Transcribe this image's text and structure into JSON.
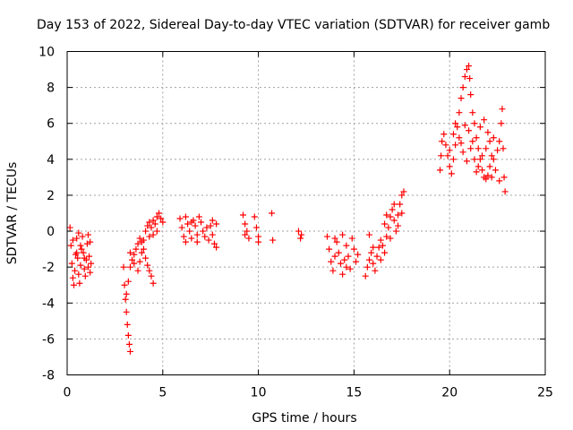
{
  "chart_data": {
    "type": "scatter",
    "title": "Day 153 of 2022, Sidereal Day-to-day VTEC variation (SDTVAR) for receiver gamb",
    "xlabel": "GPS time / hours",
    "ylabel": "SDTVAR / TECUs",
    "xlim": [
      0,
      25
    ],
    "ylim": [
      -8,
      10
    ],
    "xticks": [
      0,
      5,
      10,
      15,
      20,
      25
    ],
    "yticks": [
      -8,
      -6,
      -4,
      -2,
      0,
      2,
      4,
      6,
      8,
      10
    ],
    "grid": true,
    "marker": "+",
    "series": [
      {
        "name": "SDTVAR",
        "color": "#ff0000",
        "points": [
          [
            0.15,
            0.2
          ],
          [
            0.2,
            -0.8
          ],
          [
            0.25,
            -1.8
          ],
          [
            0.3,
            -2.6
          ],
          [
            0.35,
            -3.0
          ],
          [
            0.4,
            -2.2
          ],
          [
            0.45,
            -1.3
          ],
          [
            0.5,
            -0.4
          ],
          [
            0.55,
            -1.5
          ],
          [
            0.6,
            -2.4
          ],
          [
            0.65,
            -2.9
          ],
          [
            0.7,
            -1.9
          ],
          [
            0.75,
            -1.0
          ],
          [
            0.8,
            -0.3
          ],
          [
            0.85,
            -1.2
          ],
          [
            0.9,
            -2.1
          ],
          [
            0.95,
            -2.5
          ],
          [
            1.0,
            -1.6
          ],
          [
            1.05,
            -0.7
          ],
          [
            1.1,
            -0.2
          ],
          [
            1.15,
            -1.4
          ],
          [
            1.2,
            -2.3
          ],
          [
            1.25,
            -1.8
          ],
          [
            0.5,
            -1.2
          ],
          [
            0.7,
            -0.8
          ],
          [
            0.9,
            -1.5
          ],
          [
            1.1,
            -2.0
          ],
          [
            0.3,
            -0.5
          ],
          [
            0.6,
            -0.1
          ],
          [
            1.2,
            -0.6
          ],
          [
            2.95,
            -2.0
          ],
          [
            3.0,
            -3.0
          ],
          [
            3.05,
            -3.8
          ],
          [
            3.1,
            -4.5
          ],
          [
            3.15,
            -5.2
          ],
          [
            3.2,
            -5.8
          ],
          [
            3.25,
            -6.3
          ],
          [
            3.3,
            -6.7
          ],
          [
            3.1,
            -3.5
          ],
          [
            3.2,
            -2.8
          ],
          [
            3.3,
            -2.0
          ],
          [
            3.4,
            -1.6
          ],
          [
            3.5,
            -1.3
          ],
          [
            3.6,
            -1.0
          ],
          [
            3.7,
            -0.7
          ],
          [
            3.8,
            -0.4
          ],
          [
            3.9,
            -0.6
          ],
          [
            4.0,
            -1.0
          ],
          [
            4.1,
            -1.5
          ],
          [
            4.2,
            -1.9
          ],
          [
            4.3,
            -2.2
          ],
          [
            4.4,
            -2.5
          ],
          [
            4.5,
            -2.9
          ],
          [
            3.7,
            -2.2
          ],
          [
            3.8,
            -1.7
          ],
          [
            3.9,
            -1.2
          ],
          [
            4.0,
            -0.5
          ],
          [
            4.1,
            0.0
          ],
          [
            4.2,
            0.3
          ],
          [
            4.3,
            0.5
          ],
          [
            4.4,
            0.2
          ],
          [
            4.5,
            -0.2
          ],
          [
            4.6,
            0.4
          ],
          [
            4.7,
            0.8
          ],
          [
            4.8,
            1.0
          ],
          [
            4.9,
            0.7
          ],
          [
            5.0,
            0.5
          ],
          [
            4.3,
            -0.3
          ],
          [
            4.5,
            0.6
          ],
          [
            4.7,
            0.0
          ],
          [
            3.5,
            -1.8
          ],
          [
            3.3,
            -1.2
          ],
          [
            5.9,
            0.7
          ],
          [
            6.0,
            0.2
          ],
          [
            6.1,
            -0.3
          ],
          [
            6.2,
            -0.6
          ],
          [
            6.3,
            0.4
          ],
          [
            6.4,
            0.0
          ],
          [
            6.5,
            -0.4
          ],
          [
            6.6,
            0.6
          ],
          [
            6.7,
            0.3
          ],
          [
            6.8,
            -0.2
          ],
          [
            6.9,
            0.8
          ],
          [
            7.0,
            0.5
          ],
          [
            7.1,
            0.0
          ],
          [
            7.2,
            -0.3
          ],
          [
            7.3,
            0.2
          ],
          [
            7.4,
            -0.5
          ],
          [
            7.5,
            0.3
          ],
          [
            7.6,
            -0.2
          ],
          [
            7.7,
            -0.7
          ],
          [
            7.8,
            -0.9
          ],
          [
            7.6,
            0.6
          ],
          [
            7.8,
            0.4
          ],
          [
            6.2,
            0.8
          ],
          [
            6.5,
            0.5
          ],
          [
            6.8,
            -0.6
          ],
          [
            9.2,
            0.9
          ],
          [
            9.3,
            0.4
          ],
          [
            9.4,
            0.0
          ],
          [
            9.5,
            -0.4
          ],
          [
            9.3,
            -0.2
          ],
          [
            9.8,
            0.8
          ],
          [
            9.9,
            0.2
          ],
          [
            10.0,
            -0.3
          ],
          [
            10.0,
            -0.6
          ],
          [
            10.7,
            1.0
          ],
          [
            10.75,
            -0.5
          ],
          [
            12.1,
            0.0
          ],
          [
            12.2,
            -0.4
          ],
          [
            12.25,
            -0.2
          ],
          [
            13.6,
            -0.3
          ],
          [
            13.7,
            -1.0
          ],
          [
            13.8,
            -1.7
          ],
          [
            13.9,
            -2.2
          ],
          [
            14.0,
            -1.4
          ],
          [
            14.1,
            -0.6
          ],
          [
            14.2,
            -1.2
          ],
          [
            14.3,
            -1.8
          ],
          [
            14.4,
            -2.4
          ],
          [
            14.5,
            -1.6
          ],
          [
            14.6,
            -0.8
          ],
          [
            14.7,
            -1.4
          ],
          [
            14.8,
            -2.1
          ],
          [
            14.4,
            -0.2
          ],
          [
            14.9,
            -0.4
          ],
          [
            15.0,
            -1.0
          ],
          [
            15.1,
            -1.7
          ],
          [
            15.2,
            -1.3
          ],
          [
            14.0,
            -0.4
          ],
          [
            14.6,
            -2.0
          ],
          [
            15.6,
            -2.5
          ],
          [
            15.7,
            -2.0
          ],
          [
            15.8,
            -1.6
          ],
          [
            15.9,
            -1.2
          ],
          [
            16.0,
            -1.8
          ],
          [
            16.1,
            -2.2
          ],
          [
            16.2,
            -1.4
          ],
          [
            16.3,
            -0.9
          ],
          [
            16.4,
            -0.5
          ],
          [
            16.5,
            -0.8
          ],
          [
            16.6,
            -1.2
          ],
          [
            16.7,
            -0.3
          ],
          [
            16.8,
            0.2
          ],
          [
            16.9,
            0.8
          ],
          [
            17.0,
            1.2
          ],
          [
            17.1,
            0.6
          ],
          [
            17.2,
            0.0
          ],
          [
            17.3,
            0.9
          ],
          [
            17.4,
            1.5
          ],
          [
            17.5,
            2.0
          ],
          [
            17.6,
            2.2
          ],
          [
            17.5,
            1.0
          ],
          [
            17.3,
            0.3
          ],
          [
            16.6,
            0.4
          ],
          [
            16.0,
            -0.9
          ],
          [
            15.8,
            -0.2
          ],
          [
            16.9,
            -0.4
          ],
          [
            16.4,
            -1.6
          ],
          [
            17.1,
            1.5
          ],
          [
            16.7,
            0.9
          ],
          [
            19.5,
            3.4
          ],
          [
            19.55,
            4.2
          ],
          [
            19.6,
            5.0
          ],
          [
            19.7,
            5.4
          ],
          [
            19.8,
            4.8
          ],
          [
            19.9,
            4.2
          ],
          [
            20.0,
            3.6
          ],
          [
            20.1,
            3.2
          ],
          [
            20.2,
            4.0
          ],
          [
            20.3,
            4.8
          ],
          [
            20.4,
            5.8
          ],
          [
            20.5,
            6.6
          ],
          [
            20.6,
            7.4
          ],
          [
            20.7,
            8.0
          ],
          [
            20.8,
            8.6
          ],
          [
            20.9,
            9.0
          ],
          [
            21.0,
            9.2
          ],
          [
            21.05,
            8.5
          ],
          [
            21.1,
            7.6
          ],
          [
            21.2,
            6.6
          ],
          [
            21.3,
            6.0
          ],
          [
            21.4,
            5.2
          ],
          [
            21.5,
            4.6
          ],
          [
            21.6,
            4.0
          ],
          [
            21.7,
            3.4
          ],
          [
            21.8,
            3.0
          ],
          [
            21.9,
            2.9
          ],
          [
            22.0,
            3.1
          ],
          [
            22.1,
            3.6
          ],
          [
            22.2,
            4.2
          ],
          [
            22.3,
            4.0
          ],
          [
            22.4,
            3.4
          ],
          [
            22.5,
            4.5
          ],
          [
            22.6,
            5.0
          ],
          [
            22.7,
            6.0
          ],
          [
            22.75,
            6.8
          ],
          [
            22.8,
            4.6
          ],
          [
            22.85,
            3.0
          ],
          [
            22.9,
            2.2
          ],
          [
            20.3,
            6.0
          ],
          [
            20.5,
            5.2
          ],
          [
            20.7,
            4.4
          ],
          [
            20.9,
            3.9
          ],
          [
            21.1,
            4.6
          ],
          [
            21.3,
            4.0
          ],
          [
            21.5,
            3.6
          ],
          [
            21.7,
            4.2
          ],
          [
            21.9,
            4.6
          ],
          [
            22.1,
            5.0
          ],
          [
            22.3,
            5.2
          ],
          [
            20.0,
            4.5
          ],
          [
            20.2,
            5.4
          ],
          [
            21.0,
            5.6
          ],
          [
            21.2,
            5.0
          ],
          [
            21.6,
            5.8
          ],
          [
            21.8,
            6.2
          ],
          [
            22.0,
            5.5
          ],
          [
            20.6,
            4.9
          ],
          [
            20.8,
            5.9
          ],
          [
            21.4,
            3.3
          ],
          [
            22.6,
            2.8
          ],
          [
            22.2,
            3.0
          ]
        ]
      }
    ]
  }
}
